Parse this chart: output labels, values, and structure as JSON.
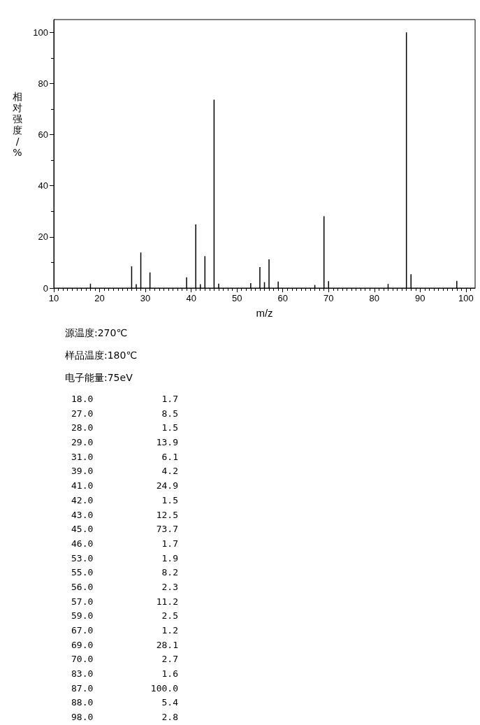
{
  "chart_data": {
    "type": "bar",
    "xlabel": "m/z",
    "ylabel": "相对强度/%",
    "x": [
      18,
      27,
      28,
      29,
      31,
      39,
      41,
      42,
      43,
      45,
      46,
      53,
      55,
      56,
      57,
      59,
      67,
      69,
      70,
      83,
      87,
      88,
      98
    ],
    "values": [
      1.7,
      8.5,
      1.5,
      13.9,
      6.1,
      4.2,
      24.9,
      1.5,
      12.5,
      73.7,
      1.7,
      1.9,
      8.2,
      2.3,
      11.2,
      2.5,
      1.2,
      28.1,
      2.7,
      1.6,
      100.0,
      5.4,
      2.8
    ],
    "color": "#000000",
    "xlim": [
      10,
      102
    ],
    "xticks": [
      10,
      20,
      30,
      40,
      50,
      60,
      70,
      80,
      90,
      100
    ],
    "ylim": [
      0,
      105
    ],
    "yticks": [
      0,
      20,
      40,
      60,
      80,
      100
    ],
    "grid": false,
    "annotations": [
      "源温度:270℃",
      "样品温度:180℃",
      "电子能量:75eV",
      "18.0",
      "1.7",
      "27.0",
      "8.5",
      "28.0",
      "1.5",
      "29.0",
      "13.9",
      "31.0",
      "6.1",
      "39.0",
      "4.2",
      "41.0",
      "24.9",
      "42.0",
      "1.5",
      "43.0",
      "12.5",
      "45.0",
      "73.7",
      "46.0",
      "1.7",
      "53.0",
      "1.9",
      "55.0",
      "8.2",
      "56.0",
      "2.3",
      "57.0",
      "11.2",
      "59.0",
      "2.5",
      "67.0",
      "1.2",
      "69.0",
      "28.1",
      "70.0",
      "2.7",
      "83.0",
      "1.6",
      "87.0",
      "100.0",
      "88.0",
      "5.4",
      "98.0",
      "2.8"
    ]
  }
}
